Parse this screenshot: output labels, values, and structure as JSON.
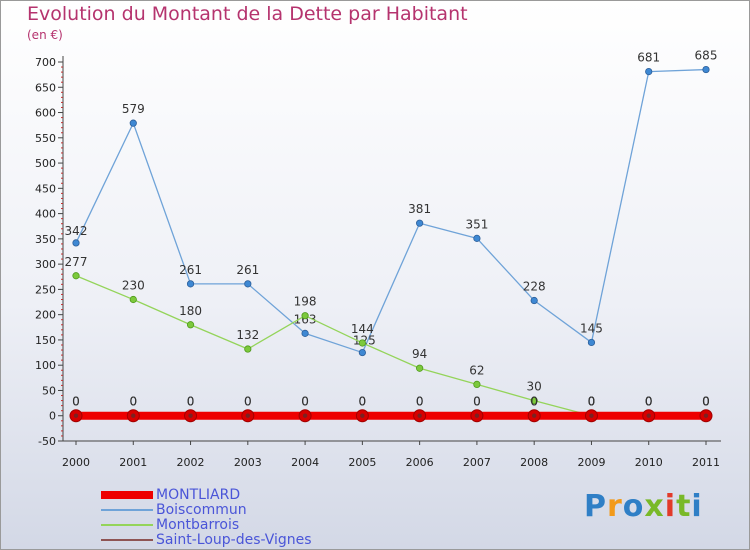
{
  "title": "Evolution du Montant de la Dette par Habitant",
  "subtitle": "(en €)",
  "logo": {
    "text": "Proxiti",
    "colors": [
      "#2f7fc6",
      "#f29a1a",
      "#2f7fc6",
      "#79b928",
      "#e23a2a",
      "#79b928",
      "#2f7fc6"
    ]
  },
  "legend": [
    {
      "label": "MONTLIARD",
      "color": "#ee0000"
    },
    {
      "label": "Boiscommun",
      "color": "#6fa3d8"
    },
    {
      "label": "Montbarrois",
      "color": "#94d45a"
    },
    {
      "label": "Saint-Loup-des-Vignes",
      "color": "#8e5454"
    }
  ],
  "chart_data": {
    "type": "line",
    "title": "Evolution du Montant de la Dette par Habitant",
    "subtitle": "(en €)",
    "x": [
      "2000",
      "2001",
      "2002",
      "2003",
      "2004",
      "2005",
      "2006",
      "2007",
      "2008",
      "2009",
      "2010",
      "2011"
    ],
    "ylim": [
      -50,
      700
    ],
    "yticks": [
      -50,
      0,
      50,
      100,
      150,
      200,
      250,
      300,
      350,
      400,
      450,
      500,
      550,
      600,
      650,
      700
    ],
    "grid": false,
    "legend_position": "bottom-left",
    "series": [
      {
        "name": "Boiscommun",
        "color": "#6fa3d8",
        "values": [
          342,
          579,
          261,
          261,
          163,
          125,
          381,
          351,
          228,
          145,
          681,
          685
        ],
        "labels": [
          "342",
          "579",
          "261",
          "261",
          "163",
          "125",
          "381",
          "351",
          "228",
          "145",
          "681",
          "685"
        ]
      },
      {
        "name": "Montbarrois",
        "color": "#94d45a",
        "values": [
          277,
          230,
          180,
          132,
          198,
          144,
          94,
          62,
          30,
          0,
          0,
          0
        ],
        "labels": [
          "277",
          "230",
          "180",
          "132",
          "198",
          "144",
          "94",
          "62",
          "30",
          "0",
          "0",
          "0"
        ]
      },
      {
        "name": "Saint-Loup-des-Vignes",
        "color": "#8e5454",
        "values": [
          0,
          0,
          0,
          0,
          0,
          0,
          0,
          0,
          0,
          0,
          0,
          0
        ],
        "labels": [
          "0",
          "0",
          "0",
          "0",
          "0",
          "0",
          "0",
          "0",
          "0",
          "0",
          "0",
          "0"
        ]
      },
      {
        "name": "MONTLIARD",
        "color": "#ee0000",
        "values": [
          0,
          0,
          0,
          0,
          0,
          0,
          0,
          0,
          0,
          0,
          0,
          0
        ],
        "labels": [
          "0",
          "0",
          "0",
          "0",
          "0",
          "0",
          "0",
          "0",
          "0",
          "0",
          "0",
          "0"
        ]
      }
    ]
  }
}
